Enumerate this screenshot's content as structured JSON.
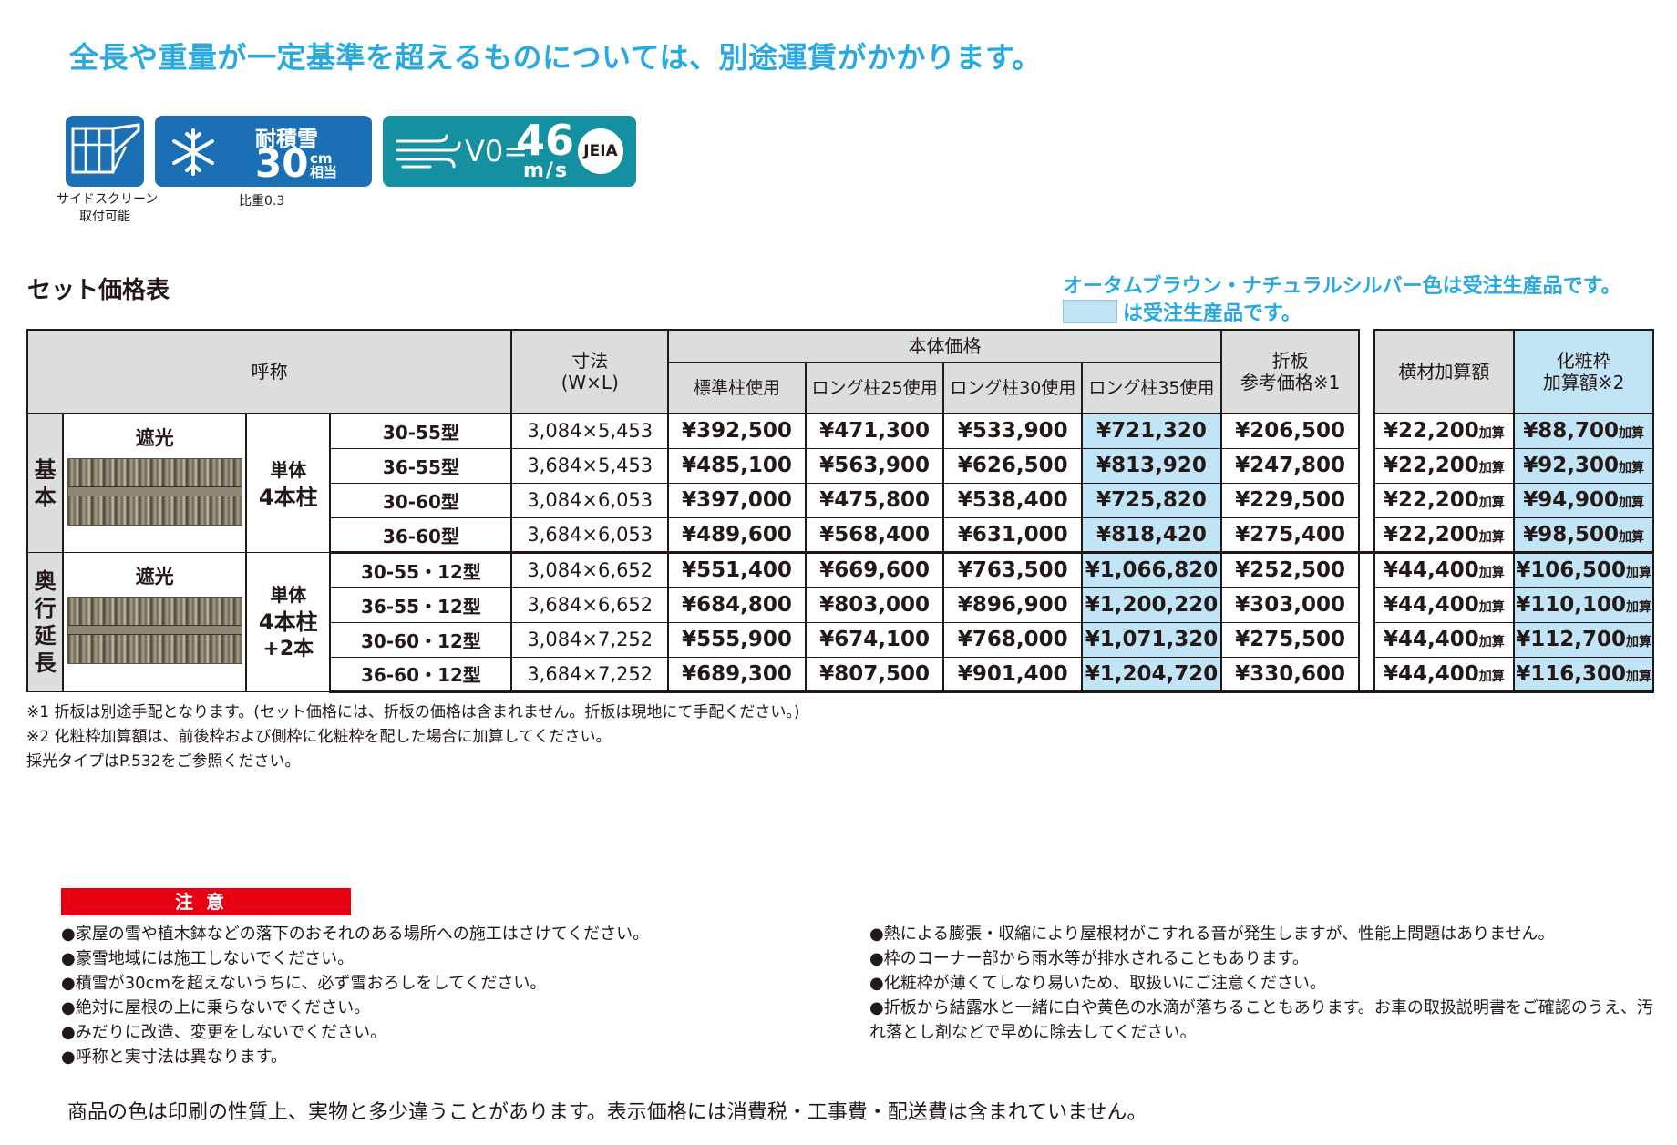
{
  "headline": "全長や重量が一定基準を超えるものについては、別途運賃がかかります。",
  "badges": {
    "screen": {
      "icon": "side-screen-icon",
      "caption_line1": "サイドスクリーン",
      "caption_line2": "取付可能"
    },
    "snow": {
      "icon": "snowflake-icon",
      "title": "耐積雪",
      "value": "30",
      "unit_top": "cm",
      "unit_bottom": "相当",
      "caption": "比重0.3"
    },
    "wind": {
      "icon": "wind-icon",
      "label": "V0=",
      "value": "46",
      "unit": "m/s",
      "logo": "JEIA"
    }
  },
  "section_title": "セット価格表",
  "notes": {
    "autumn": "オータムブラウン・ナチュラルシルバー色は受注生産品です。",
    "legend": "は受注生産品です。"
  },
  "table": {
    "headers": {
      "name": "呼称",
      "size_line1": "寸法",
      "size_line2": "(W×L)",
      "body_price": "本体価格",
      "standard": "標準柱使用",
      "long25": "ロング柱25使用",
      "long30": "ロング柱30使用",
      "long35": "ロング柱35使用",
      "fold_line1": "折板",
      "fold_line2": "参考価格※1",
      "cross": "横材加算額",
      "trim_line1": "化粧枠",
      "trim_line2": "加算額※2"
    },
    "add_suffix": "加算",
    "groups": [
      {
        "label": "基本",
        "image_label": "遮光",
        "config_line1": "単体",
        "config_line2": "4本柱",
        "config_line3": "",
        "rows": [
          {
            "model": "30-55型",
            "size": "3,084×5,453",
            "standard": "¥392,500",
            "long25": "¥471,300",
            "long30": "¥533,900",
            "long35": "¥721,320",
            "fold": "¥206,500",
            "cross": "¥22,200",
            "trim": "¥88,700"
          },
          {
            "model": "36-55型",
            "size": "3,684×5,453",
            "standard": "¥485,100",
            "long25": "¥563,900",
            "long30": "¥626,500",
            "long35": "¥813,920",
            "fold": "¥247,800",
            "cross": "¥22,200",
            "trim": "¥92,300"
          },
          {
            "model": "30-60型",
            "size": "3,084×6,053",
            "standard": "¥397,000",
            "long25": "¥475,800",
            "long30": "¥538,400",
            "long35": "¥725,820",
            "fold": "¥229,500",
            "cross": "¥22,200",
            "trim": "¥94,900"
          },
          {
            "model": "36-60型",
            "size": "3,684×6,053",
            "standard": "¥489,600",
            "long25": "¥568,400",
            "long30": "¥631,000",
            "long35": "¥818,420",
            "fold": "¥275,400",
            "cross": "¥22,200",
            "trim": "¥98,500"
          }
        ]
      },
      {
        "label": "奥行延長",
        "image_label": "遮光",
        "config_line1": "単体",
        "config_line2": "4本柱",
        "config_line3": "+2本",
        "rows": [
          {
            "model": "30-55・12型",
            "size": "3,084×6,652",
            "standard": "¥551,400",
            "long25": "¥669,600",
            "long30": "¥763,500",
            "long35": "¥1,066,820",
            "fold": "¥252,500",
            "cross": "¥44,400",
            "trim": "¥106,500"
          },
          {
            "model": "36-55・12型",
            "size": "3,684×6,652",
            "standard": "¥684,800",
            "long25": "¥803,000",
            "long30": "¥896,900",
            "long35": "¥1,200,220",
            "fold": "¥303,000",
            "cross": "¥44,400",
            "trim": "¥110,100"
          },
          {
            "model": "30-60・12型",
            "size": "3,084×7,252",
            "standard": "¥555,900",
            "long25": "¥674,100",
            "long30": "¥768,000",
            "long35": "¥1,071,320",
            "fold": "¥275,500",
            "cross": "¥44,400",
            "trim": "¥112,700"
          },
          {
            "model": "36-60・12型",
            "size": "3,684×7,252",
            "standard": "¥689,300",
            "long25": "¥807,500",
            "long30": "¥901,400",
            "long35": "¥1,204,720",
            "fold": "¥330,600",
            "cross": "¥44,400",
            "trim": "¥116,300"
          }
        ]
      }
    ]
  },
  "footnotes": [
    "※1 折板は別途手配となります。(セット価格には、折板の価格は含まれません。折板は現地にて手配ください。)",
    "※2 化粧枠加算額は、前後枠および側枠に化粧枠を配した場合に加算してください。",
    "採光タイプはP.532をご参照ください。"
  ],
  "caution": {
    "title": "注意",
    "left": [
      "家屋の雪や植木鉢などの落下のおそれのある場所への施工はさけてください。",
      "豪雪地域には施工しないでください。",
      "積雪が30cmを超えないうちに、必ず雪おろしをしてください。",
      "絶対に屋根の上に乗らないでください。",
      "みだりに改造、変更をしないでください。",
      "呼称と実寸法は異なります。"
    ],
    "right": [
      "熱による膨張・収縮により屋根材がこすれる音が発生しますが、性能上問題はありません。",
      "枠のコーナー部から雨水等が排水されることもあります。",
      "化粧枠が薄くてしなり易いため、取扱いにご注意ください。",
      "折板から結露水と一緒に白や黄色の水滴が落ちることもあります。お車の取扱説明書をご確認のうえ、汚れ落とし剤などで早めに除去してください。"
    ]
  },
  "bottom_note": "商品の色は印刷の性質上、実物と多少違うことがあります。表示価格には消費税・工事費・配送費は含まれていません。",
  "colors": {
    "accent_blue": "#29a9e0",
    "highlight": "#c2e4f7",
    "badge_blue": "#1a6fb5",
    "badge_teal": "#1590a0",
    "caution_red": "#e60012",
    "header_gray": "#dcdddd"
  }
}
